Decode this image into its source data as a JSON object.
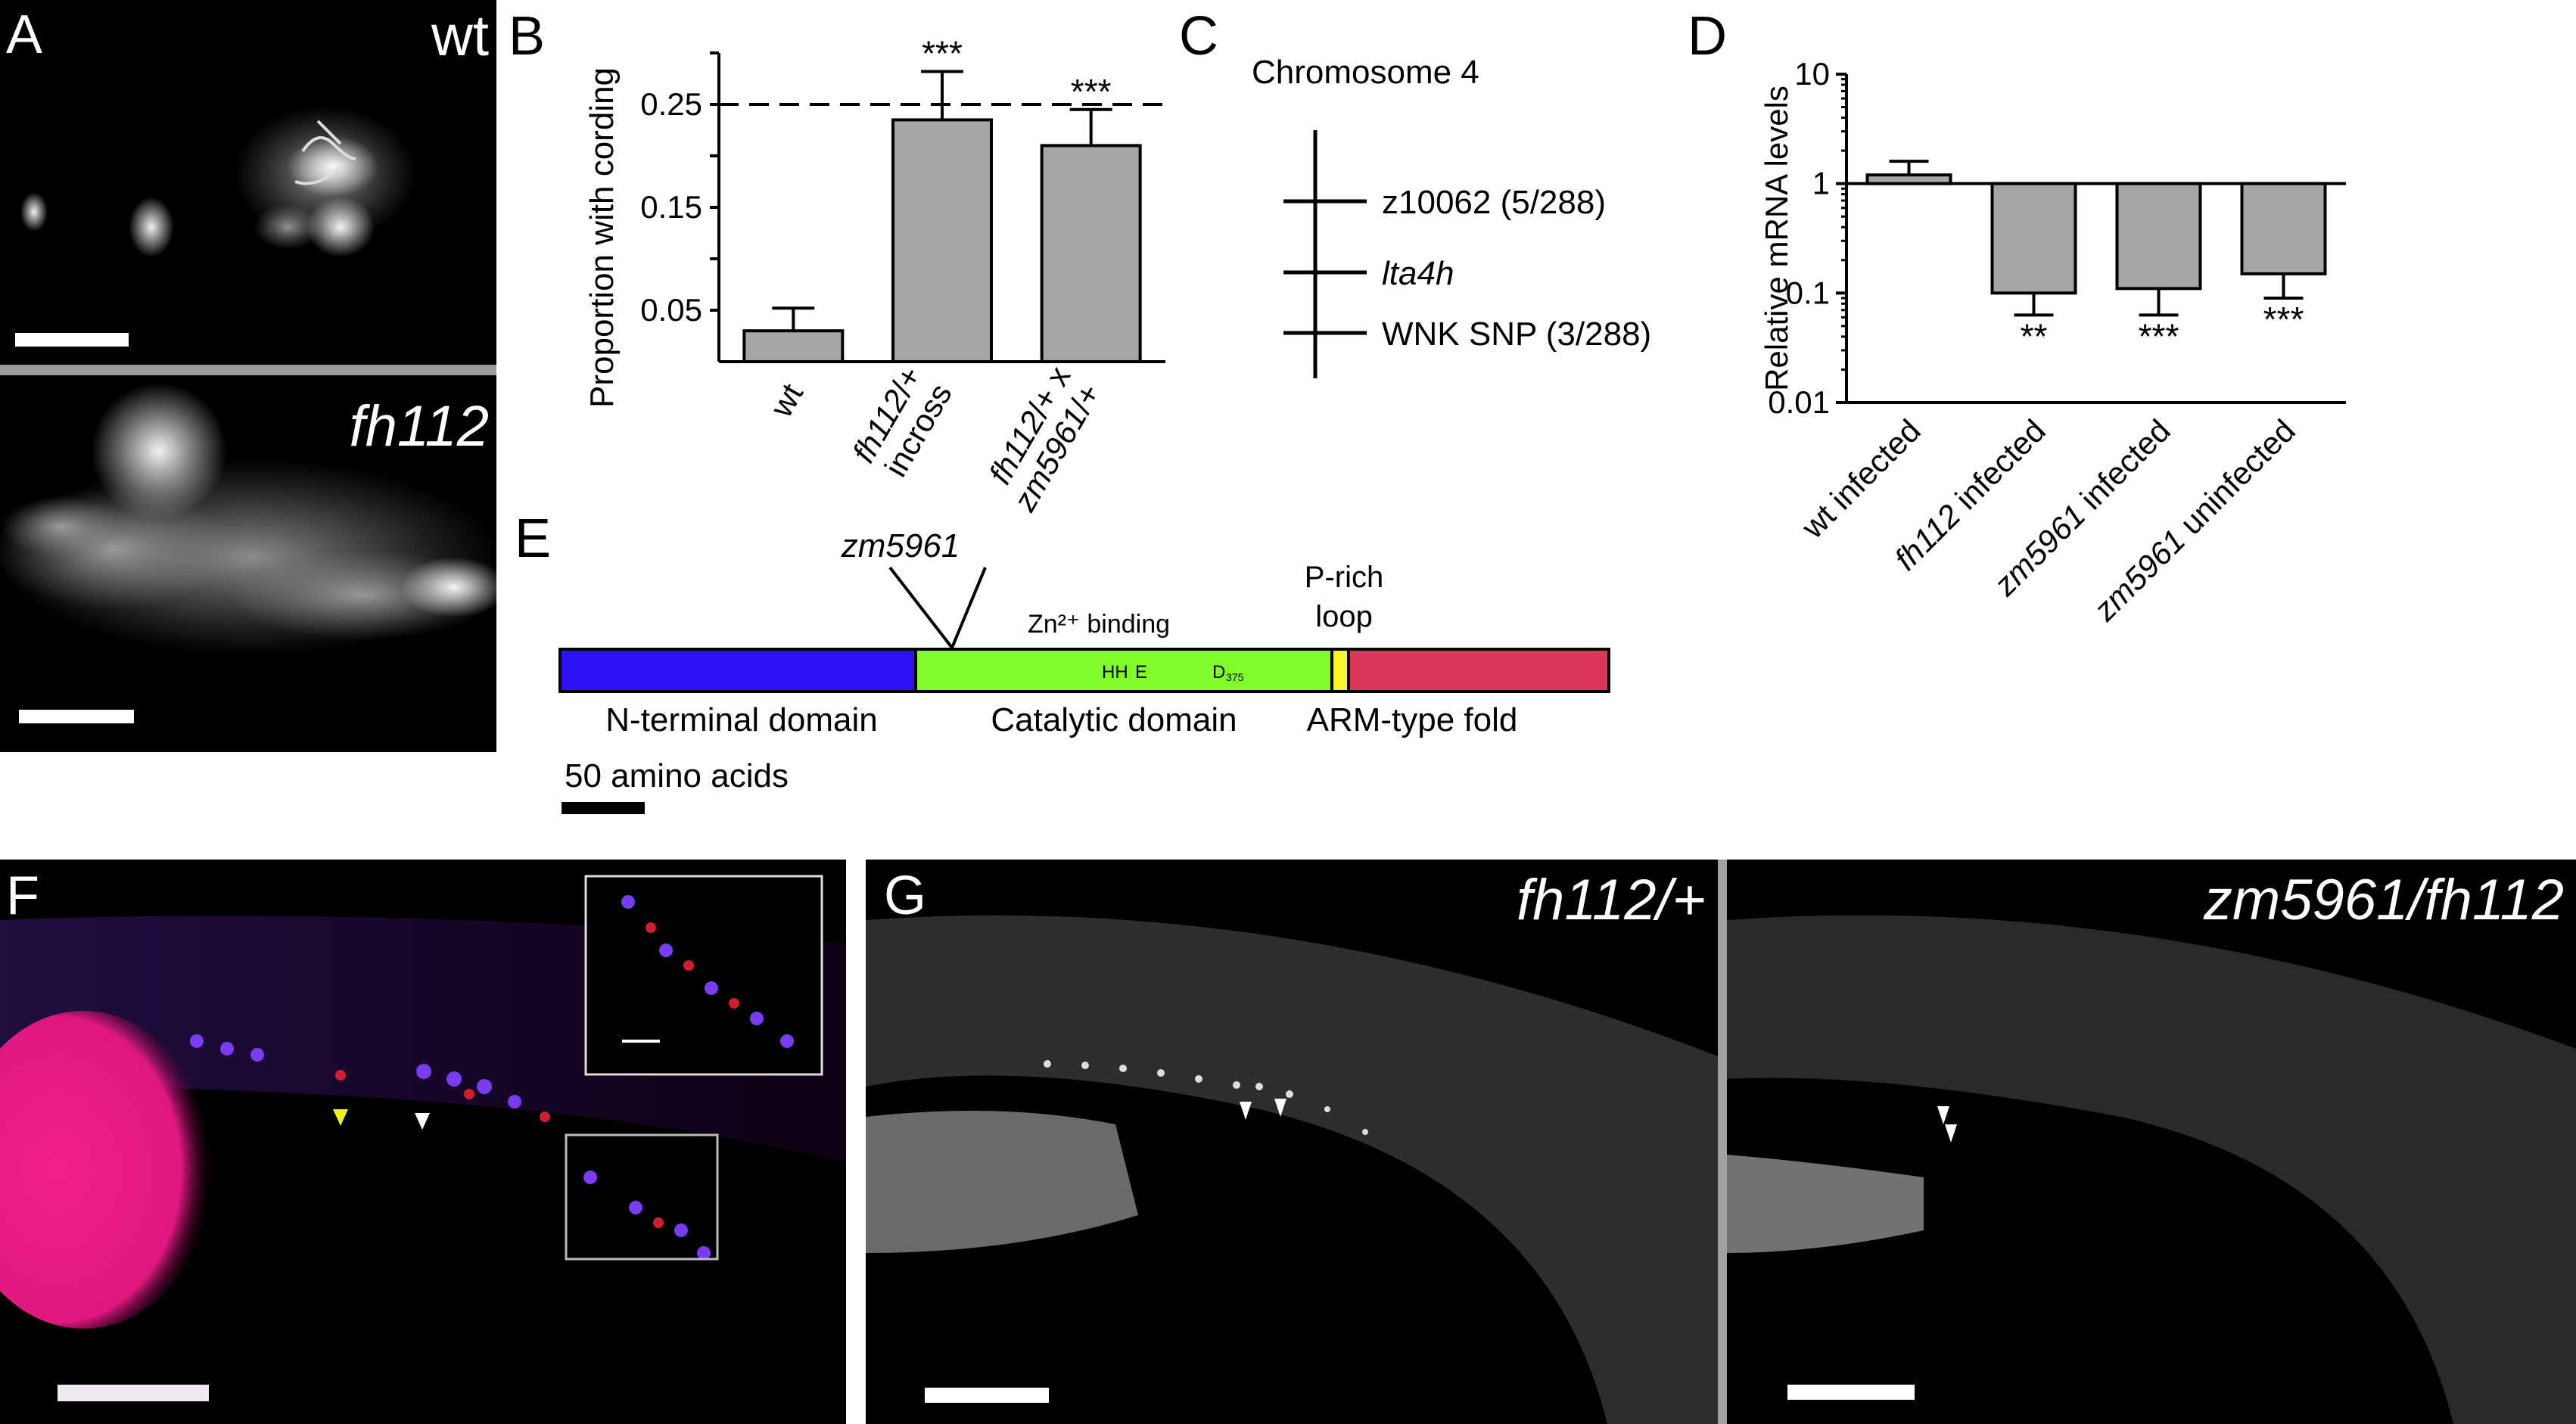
{
  "panels": {
    "A": {
      "label": "A",
      "top_text": "wt",
      "bottom_text": "fh112"
    },
    "B": {
      "label": "B"
    },
    "C": {
      "label": "C",
      "title": "Chromosome 4",
      "markers": [
        "z10062 (5/288)",
        "lta4h",
        "WNK SNP (3/288)"
      ]
    },
    "D": {
      "label": "D"
    },
    "E": {
      "label": "E",
      "mutation": "zm5961",
      "zn_binding": "Zn²⁺ binding",
      "p_rich": [
        "P-rich",
        "loop"
      ],
      "residues": [
        "HH",
        "E",
        "D",
        "375"
      ],
      "domains": [
        "N-terminal domain",
        "Catalytic domain",
        "ARM-type fold"
      ],
      "scale_text": "50 amino acids",
      "colors": {
        "nterm": "#2a12f5",
        "catalytic": "#7ffc2a",
        "ploop": "#f5f52a",
        "arm": "#d9365a"
      }
    },
    "F": {
      "label": "F"
    },
    "G": {
      "label": "G",
      "left_text": "fh112/+",
      "right_text": "zm5961/fh112"
    }
  },
  "chart_data": [
    {
      "type": "bar",
      "ylabel": "Proportion with cording",
      "categories": [
        "wt",
        "fh112/+ incross",
        "fh112/+ x zm5961/+"
      ],
      "category_lines": [
        [
          "wt"
        ],
        [
          "fh112/+",
          "incross"
        ],
        [
          "fh112/+ x",
          "zm5961/+"
        ]
      ],
      "values": [
        0.03,
        0.235,
        0.21
      ],
      "errors": [
        0.022,
        0.047,
        0.035
      ],
      "significance": [
        "",
        "***",
        "***"
      ],
      "reference_line": 0.25,
      "yticks": [
        "0.05",
        "0.15",
        "0.25"
      ],
      "ylim": [
        0,
        0.3
      ],
      "bar_color": "#a6a6a6"
    },
    {
      "type": "bar",
      "ylabel": "Relative mRNA levels",
      "yscale": "log",
      "categories": [
        "wt infected",
        "fh112 infected",
        "zm5961 infected",
        "zm5961 uninfected"
      ],
      "values": [
        1.2,
        0.1,
        0.11,
        0.15
      ],
      "errors_upper": [
        1.6,
        0.1,
        0.11,
        0.15
      ],
      "errors_lower": [
        1.2,
        0.063,
        0.063,
        0.09
      ],
      "significance": [
        "",
        "**",
        "***",
        "***"
      ],
      "yticks": [
        "0.01",
        "0.1",
        "1",
        "10"
      ],
      "ylim": [
        0.01,
        10
      ],
      "bar_color": "#a6a6a6"
    }
  ]
}
